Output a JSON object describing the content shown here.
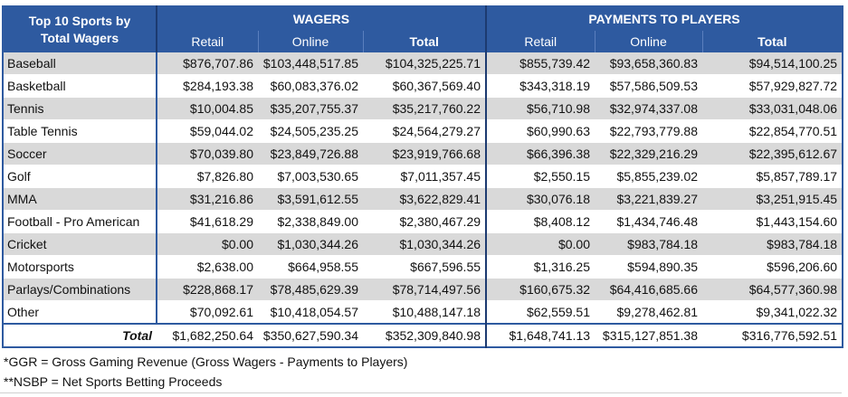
{
  "header": {
    "corner_line1": "Top 10 Sports by",
    "corner_line2": "Total Wagers",
    "group_wagers": "WAGERS",
    "group_payments": "PAYMENTS TO PLAYERS",
    "sub": [
      "Retail",
      "Online",
      "Total",
      "Retail",
      "Online",
      "Total"
    ]
  },
  "rows": [
    {
      "sport": "Baseball",
      "w_retail": "$876,707.86",
      "w_online": "$103,448,517.85",
      "w_total": "$104,325,225.71",
      "p_retail": "$855,739.42",
      "p_online": "$93,658,360.83",
      "p_total": "$94,514,100.25"
    },
    {
      "sport": "Basketball",
      "w_retail": "$284,193.38",
      "w_online": "$60,083,376.02",
      "w_total": "$60,367,569.40",
      "p_retail": "$343,318.19",
      "p_online": "$57,586,509.53",
      "p_total": "$57,929,827.72"
    },
    {
      "sport": "Tennis",
      "w_retail": "$10,004.85",
      "w_online": "$35,207,755.37",
      "w_total": "$35,217,760.22",
      "p_retail": "$56,710.98",
      "p_online": "$32,974,337.08",
      "p_total": "$33,031,048.06"
    },
    {
      "sport": "Table Tennis",
      "w_retail": "$59,044.02",
      "w_online": "$24,505,235.25",
      "w_total": "$24,564,279.27",
      "p_retail": "$60,990.63",
      "p_online": "$22,793,779.88",
      "p_total": "$22,854,770.51"
    },
    {
      "sport": "Soccer",
      "w_retail": "$70,039.80",
      "w_online": "$23,849,726.88",
      "w_total": "$23,919,766.68",
      "p_retail": "$66,396.38",
      "p_online": "$22,329,216.29",
      "p_total": "$22,395,612.67"
    },
    {
      "sport": "Golf",
      "w_retail": "$7,826.80",
      "w_online": "$7,003,530.65",
      "w_total": "$7,011,357.45",
      "p_retail": "$2,550.15",
      "p_online": "$5,855,239.02",
      "p_total": "$5,857,789.17"
    },
    {
      "sport": "MMA",
      "w_retail": "$31,216.86",
      "w_online": "$3,591,612.55",
      "w_total": "$3,622,829.41",
      "p_retail": "$30,076.18",
      "p_online": "$3,221,839.27",
      "p_total": "$3,251,915.45"
    },
    {
      "sport": "Football - Pro American",
      "w_retail": "$41,618.29",
      "w_online": "$2,338,849.00",
      "w_total": "$2,380,467.29",
      "p_retail": "$8,408.12",
      "p_online": "$1,434,746.48",
      "p_total": "$1,443,154.60"
    },
    {
      "sport": "Cricket",
      "w_retail": "$0.00",
      "w_online": "$1,030,344.26",
      "w_total": "$1,030,344.26",
      "p_retail": "$0.00",
      "p_online": "$983,784.18",
      "p_total": "$983,784.18"
    },
    {
      "sport": "Motorsports",
      "w_retail": "$2,638.00",
      "w_online": "$664,958.55",
      "w_total": "$667,596.55",
      "p_retail": "$1,316.25",
      "p_online": "$594,890.35",
      "p_total": "$596,206.60"
    },
    {
      "sport": "Parlays/Combinations",
      "w_retail": "$228,868.17",
      "w_online": "$78,485,629.39",
      "w_total": "$78,714,497.56",
      "p_retail": "$160,675.32",
      "p_online": "$64,416,685.66",
      "p_total": "$64,577,360.98"
    },
    {
      "sport": "Other",
      "w_retail": "$70,092.61",
      "w_online": "$10,418,054.57",
      "w_total": "$10,488,147.18",
      "p_retail": "$62,559.51",
      "p_online": "$9,278,462.81",
      "p_total": "$9,341,022.32"
    }
  ],
  "total": {
    "label": "Total",
    "w_retail": "$1,682,250.64",
    "w_online": "$350,627,590.34",
    "w_total": "$352,309,840.98",
    "p_retail": "$1,648,741.13",
    "p_online": "$315,127,851.38",
    "p_total": "$316,776,592.51"
  },
  "notes": [
    "*GGR = Gross Gaming Revenue (Gross Wagers - Payments to Players)",
    "**NSBP = Net Sports Betting Proceeds"
  ],
  "colors": {
    "header_blue": "#2e5aa0",
    "stripe_gray": "#d9d9d9"
  }
}
